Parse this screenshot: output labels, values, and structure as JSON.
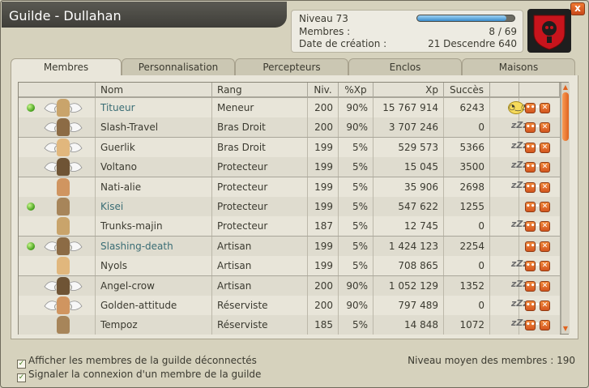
{
  "window": {
    "title": "Guilde - Dullahan",
    "close_label": "x"
  },
  "info": {
    "niveau_label": "Niveau 73",
    "niveau_progress": 0.92,
    "membres_label": "Membres :",
    "membres_value": "8 / 69",
    "date_label": "Date de création :",
    "date_value": "21 Descendre 640"
  },
  "tabs": [
    {
      "label": "Membres",
      "active": true
    },
    {
      "label": "Personnalisation",
      "active": false
    },
    {
      "label": "Percepteurs",
      "active": false
    },
    {
      "label": "Enclos",
      "active": false
    },
    {
      "label": "Maisons",
      "active": false
    }
  ],
  "table": {
    "headers": {
      "nom": "Nom",
      "rang": "Rang",
      "niv": "Niv.",
      "pxp": "%Xp",
      "xp": "Xp",
      "succes": "Succès"
    },
    "rows": [
      {
        "name": "Titueur",
        "online": true,
        "wings": true,
        "rank": "Meneur",
        "level": "200",
        "pxp": "90%",
        "xp": "15 767 914",
        "succes": "6243",
        "status": "smiley"
      },
      {
        "name": "Slash-Travel",
        "online": false,
        "wings": true,
        "rank": "Bras Droit",
        "level": "200",
        "pxp": "90%",
        "xp": "3 707 246",
        "succes": "0",
        "status": "zz"
      },
      {
        "name": "Guerlik",
        "online": false,
        "wings": true,
        "rank": "Bras Droit",
        "level": "199",
        "pxp": "5%",
        "xp": "529 573",
        "succes": "5366",
        "status": "zz"
      },
      {
        "name": "Voltano",
        "online": false,
        "wings": true,
        "rank": "Protecteur",
        "level": "199",
        "pxp": "5%",
        "xp": "15 045",
        "succes": "3500",
        "status": "zz"
      },
      {
        "name": "Nati-alie",
        "online": false,
        "wings": false,
        "rank": "Protecteur",
        "level": "199",
        "pxp": "5%",
        "xp": "35 906",
        "succes": "2698",
        "status": "zz"
      },
      {
        "name": "Kisei",
        "online": true,
        "wings": false,
        "rank": "Protecteur",
        "level": "199",
        "pxp": "5%",
        "xp": "547 622",
        "succes": "1255",
        "status": ""
      },
      {
        "name": "Trunks-majin",
        "online": false,
        "wings": false,
        "rank": "Protecteur",
        "level": "187",
        "pxp": "5%",
        "xp": "12 745",
        "succes": "0",
        "status": "zz"
      },
      {
        "name": "Slashing-death",
        "online": true,
        "wings": true,
        "rank": "Artisan",
        "level": "199",
        "pxp": "5%",
        "xp": "1 424 123",
        "succes": "2254",
        "status": ""
      },
      {
        "name": "Nyols",
        "online": false,
        "wings": false,
        "rank": "Artisan",
        "level": "199",
        "pxp": "5%",
        "xp": "708 865",
        "succes": "0",
        "status": "zz"
      },
      {
        "name": "Angel-crow",
        "online": false,
        "wings": true,
        "rank": "Artisan",
        "level": "200",
        "pxp": "90%",
        "xp": "1 052 129",
        "succes": "1352",
        "status": "zz"
      },
      {
        "name": "Golden-attitude",
        "online": false,
        "wings": true,
        "rank": "Réserviste",
        "level": "200",
        "pxp": "90%",
        "xp": "797 489",
        "succes": "0",
        "status": "zz"
      },
      {
        "name": "Tempoz",
        "online": false,
        "wings": false,
        "rank": "Réserviste",
        "level": "185",
        "pxp": "5%",
        "xp": "14 848",
        "succes": "1072",
        "status": "zz"
      }
    ]
  },
  "footer": {
    "show_offline_label": "Afficher les membres de la guilde déconnectés",
    "notify_label": "Signaler la connexion d'un membre de la guilde",
    "avg_label": "Niveau moyen des membres : 190"
  },
  "colors": {
    "accent": "#e0631f",
    "online_dot": "#4aa520",
    "online_name": "#3a6d75"
  }
}
